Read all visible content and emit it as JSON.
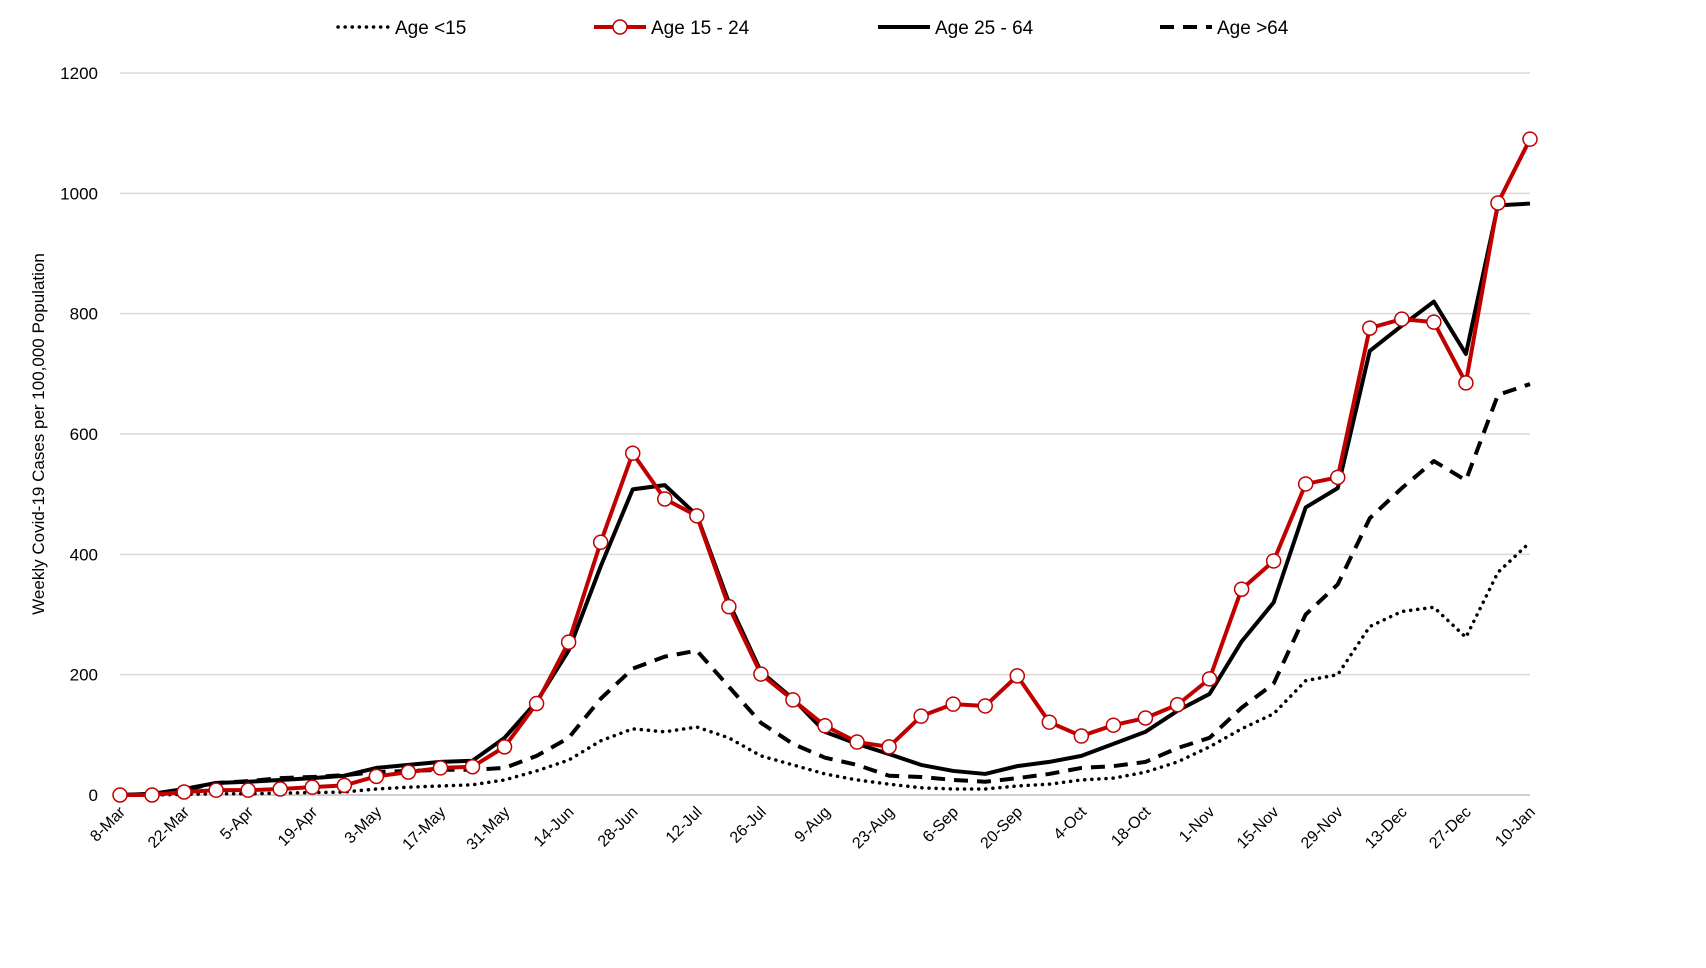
{
  "chart_data": {
    "type": "line",
    "title": "",
    "xlabel": "",
    "ylabel": "Weekly Covid-19 Cases per 100,000 Population",
    "ylim": [
      0,
      1200
    ],
    "yticks": [
      0,
      200,
      400,
      600,
      800,
      1000,
      1200
    ],
    "grid": true,
    "legend_position": "top",
    "x": [
      "8-Mar",
      "15-Mar",
      "22-Mar",
      "29-Mar",
      "5-Apr",
      "12-Apr",
      "19-Apr",
      "26-Apr",
      "3-May",
      "10-May",
      "17-May",
      "24-May",
      "31-May",
      "7-Jun",
      "14-Jun",
      "21-Jun",
      "28-Jun",
      "5-Jul",
      "12-Jul",
      "19-Jul",
      "26-Jul",
      "2-Aug",
      "9-Aug",
      "16-Aug",
      "23-Aug",
      "30-Aug",
      "6-Sep",
      "13-Sep",
      "20-Sep",
      "27-Sep",
      "4-Oct",
      "11-Oct",
      "18-Oct",
      "25-Oct",
      "1-Nov",
      "8-Nov",
      "15-Nov",
      "22-Nov",
      "29-Nov",
      "6-Dec",
      "13-Dec",
      "20-Dec",
      "27-Dec",
      "3-Jan",
      "10-Jan"
    ],
    "xtick_labels": [
      "8-Mar",
      "22-Mar",
      "5-Apr",
      "19-Apr",
      "3-May",
      "17-May",
      "31-May",
      "14-Jun",
      "28-Jun",
      "12-Jul",
      "26-Jul",
      "9-Aug",
      "23-Aug",
      "6-Sep",
      "20-Sep",
      "4-Oct",
      "18-Oct",
      "1-Nov",
      "15-Nov",
      "29-Nov",
      "13-Dec",
      "27-Dec",
      "10-Jan"
    ],
    "series": [
      {
        "name": "Age <15",
        "style": "dotted",
        "color": "#000000",
        "values": [
          0,
          0,
          1,
          2,
          2,
          3,
          4,
          5,
          10,
          13,
          15,
          17,
          25,
          40,
          58,
          90,
          110,
          105,
          113,
          95,
          65,
          50,
          35,
          25,
          18,
          12,
          10,
          10,
          15,
          18,
          25,
          28,
          38,
          55,
          80,
          110,
          135,
          190,
          200,
          280,
          305,
          312,
          262,
          370,
          420
        ]
      },
      {
        "name": "Age 15 - 24",
        "style": "solid-marker",
        "color": "#C00000",
        "values": [
          0,
          0,
          5,
          8,
          8,
          10,
          13,
          16,
          31,
          38,
          45,
          47,
          80,
          152,
          254,
          420,
          568,
          492,
          464,
          313,
          201,
          158,
          115,
          88,
          80,
          131,
          151,
          148,
          198,
          121,
          98,
          116,
          128,
          150,
          193,
          342,
          389,
          517,
          528,
          776,
          791,
          786,
          685,
          984,
          1090
        ]
      },
      {
        "name": "Age 25 - 64",
        "style": "solid",
        "color": "#000000",
        "values": [
          0,
          2,
          10,
          20,
          22,
          25,
          28,
          32,
          45,
          50,
          55,
          57,
          95,
          155,
          240,
          380,
          508,
          515,
          465,
          320,
          205,
          160,
          105,
          85,
          68,
          50,
          40,
          35,
          48,
          55,
          65,
          85,
          105,
          140,
          168,
          255,
          320,
          478,
          510,
          738,
          780,
          820,
          733,
          980,
          983
        ]
      },
      {
        "name": "Age >64",
        "style": "dashed",
        "color": "#000000",
        "values": [
          0,
          2,
          8,
          20,
          23,
          28,
          30,
          33,
          38,
          40,
          42,
          42,
          45,
          65,
          95,
          160,
          210,
          230,
          240,
          180,
          120,
          85,
          62,
          50,
          32,
          30,
          25,
          22,
          28,
          35,
          45,
          48,
          55,
          78,
          95,
          145,
          185,
          300,
          350,
          460,
          510,
          555,
          523,
          665,
          683
        ]
      }
    ]
  }
}
